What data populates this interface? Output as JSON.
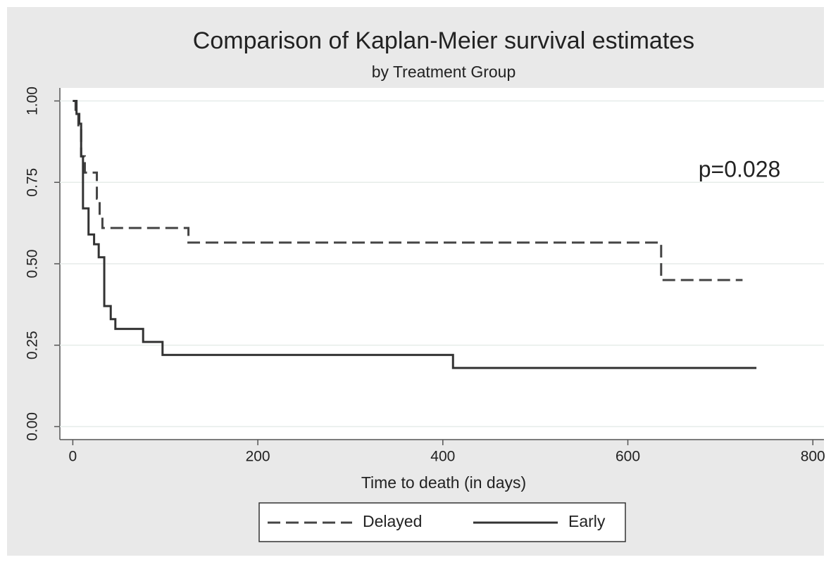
{
  "chart_data": {
    "type": "line",
    "drawstyle": "steps-post",
    "title": "Comparison of Kaplan-Meier survival estimates",
    "subtitle": "by Treatment Group",
    "xlabel": "Time to death (in days)",
    "annotation": "p=0.028",
    "xlim": [
      -14,
      812
    ],
    "ylim": [
      -0.04,
      1.04
    ],
    "xticks": [
      0,
      200,
      400,
      600,
      800
    ],
    "yticks": [
      {
        "value": 0,
        "label": "0.00"
      },
      {
        "value": 0.25,
        "label": "0.25"
      },
      {
        "value": 0.5,
        "label": "0.50"
      },
      {
        "value": 0.75,
        "label": "0.75"
      },
      {
        "value": 1,
        "label": "1.00"
      }
    ],
    "grid": true,
    "legend": "bottom",
    "series": [
      {
        "name": "Delayed",
        "color": "#444444",
        "dash": true,
        "x": [
          0,
          3,
          6,
          9,
          13,
          26,
          29,
          32,
          125,
          636,
          724
        ],
        "values": [
          1.0,
          0.96,
          0.91,
          0.83,
          0.78,
          0.7,
          0.65,
          0.61,
          0.565,
          0.45,
          0.45
        ]
      },
      {
        "name": "Early",
        "color": "#333333",
        "dash": false,
        "x": [
          0,
          4,
          7,
          9,
          11,
          17,
          23,
          28,
          34,
          41,
          46,
          76,
          97,
          411,
          739
        ],
        "values": [
          1.0,
          0.96,
          0.93,
          0.83,
          0.67,
          0.59,
          0.56,
          0.52,
          0.37,
          0.33,
          0.3,
          0.26,
          0.22,
          0.18,
          0.18
        ]
      }
    ]
  }
}
